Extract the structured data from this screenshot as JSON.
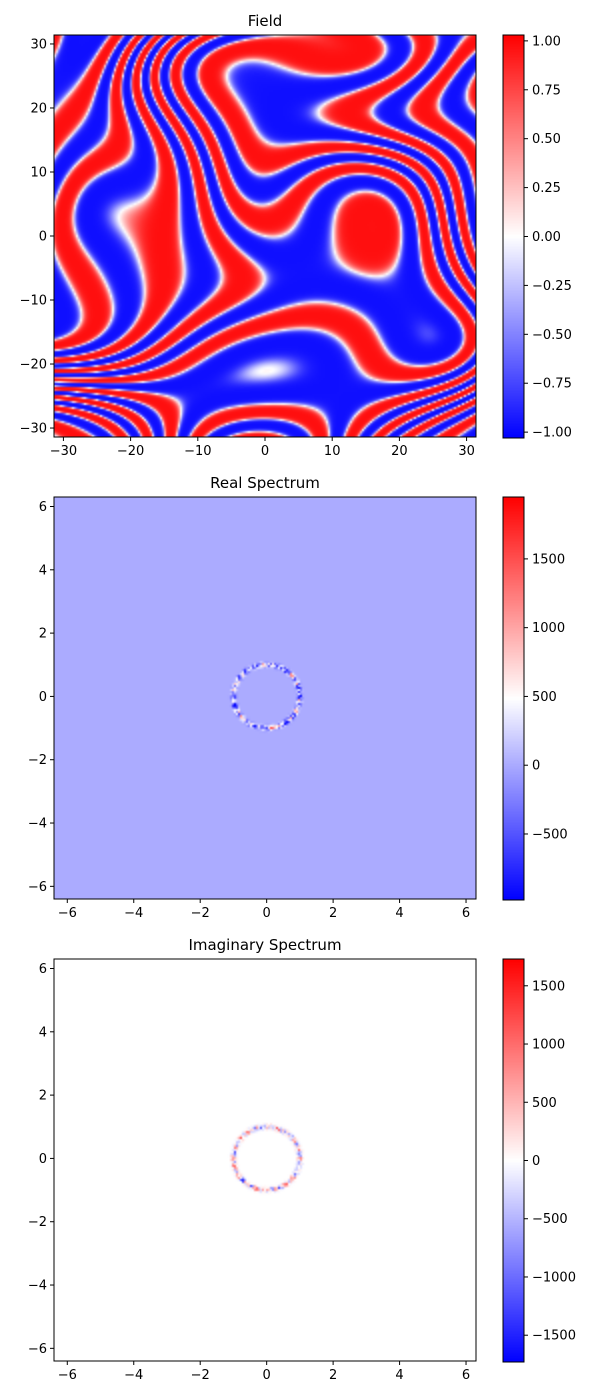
{
  "figure": {
    "chart_data": [
      {
        "type": "heatmap",
        "title": "Field",
        "colormap": "bwr",
        "x_range": [
          -31.4,
          31.4
        ],
        "y_range": [
          -31.4,
          31.4
        ],
        "x_ticks": [
          -30,
          -20,
          -10,
          0,
          10,
          20,
          30
        ],
        "y_ticks": [
          -30,
          -20,
          -10,
          0,
          10,
          20,
          30
        ],
        "colorbar": {
          "range": [
            -1.03,
            1.03
          ],
          "ticks": [
            -1.0,
            -0.75,
            -0.5,
            -0.25,
            0.0,
            0.25,
            0.5,
            0.75,
            1.0
          ]
        },
        "pattern": "labyrinthine stripes (roll pattern with defects), values between -1 and 1"
      },
      {
        "type": "heatmap",
        "title": "Real Spectrum",
        "colormap": "bwr",
        "x_range": [
          -6.4,
          6.3
        ],
        "y_range": [
          -6.4,
          6.3
        ],
        "x_ticks": [
          -6,
          -4,
          -2,
          0,
          2,
          4,
          6
        ],
        "y_ticks": [
          -6,
          -4,
          -2,
          0,
          2,
          4,
          6
        ],
        "colorbar": {
          "range": [
            -980,
            1950
          ],
          "ticks": [
            -500,
            0,
            500,
            1000,
            1500
          ]
        },
        "background_value": 0,
        "ring_radius": 1.0
      },
      {
        "type": "heatmap",
        "title": "Imaginary Spectrum",
        "colormap": "bwr",
        "x_range": [
          -6.4,
          6.3
        ],
        "y_range": [
          -6.4,
          6.3
        ],
        "x_ticks": [
          -6,
          -4,
          -2,
          0,
          2,
          4,
          6
        ],
        "y_ticks": [
          -6,
          -4,
          -2,
          0,
          2,
          4,
          6
        ],
        "colorbar": {
          "range": [
            -1730,
            1730
          ],
          "ticks": [
            -1500,
            -1000,
            -500,
            0,
            500,
            1000,
            1500
          ]
        },
        "background_value": 0,
        "ring_radius": 1.0
      }
    ]
  }
}
